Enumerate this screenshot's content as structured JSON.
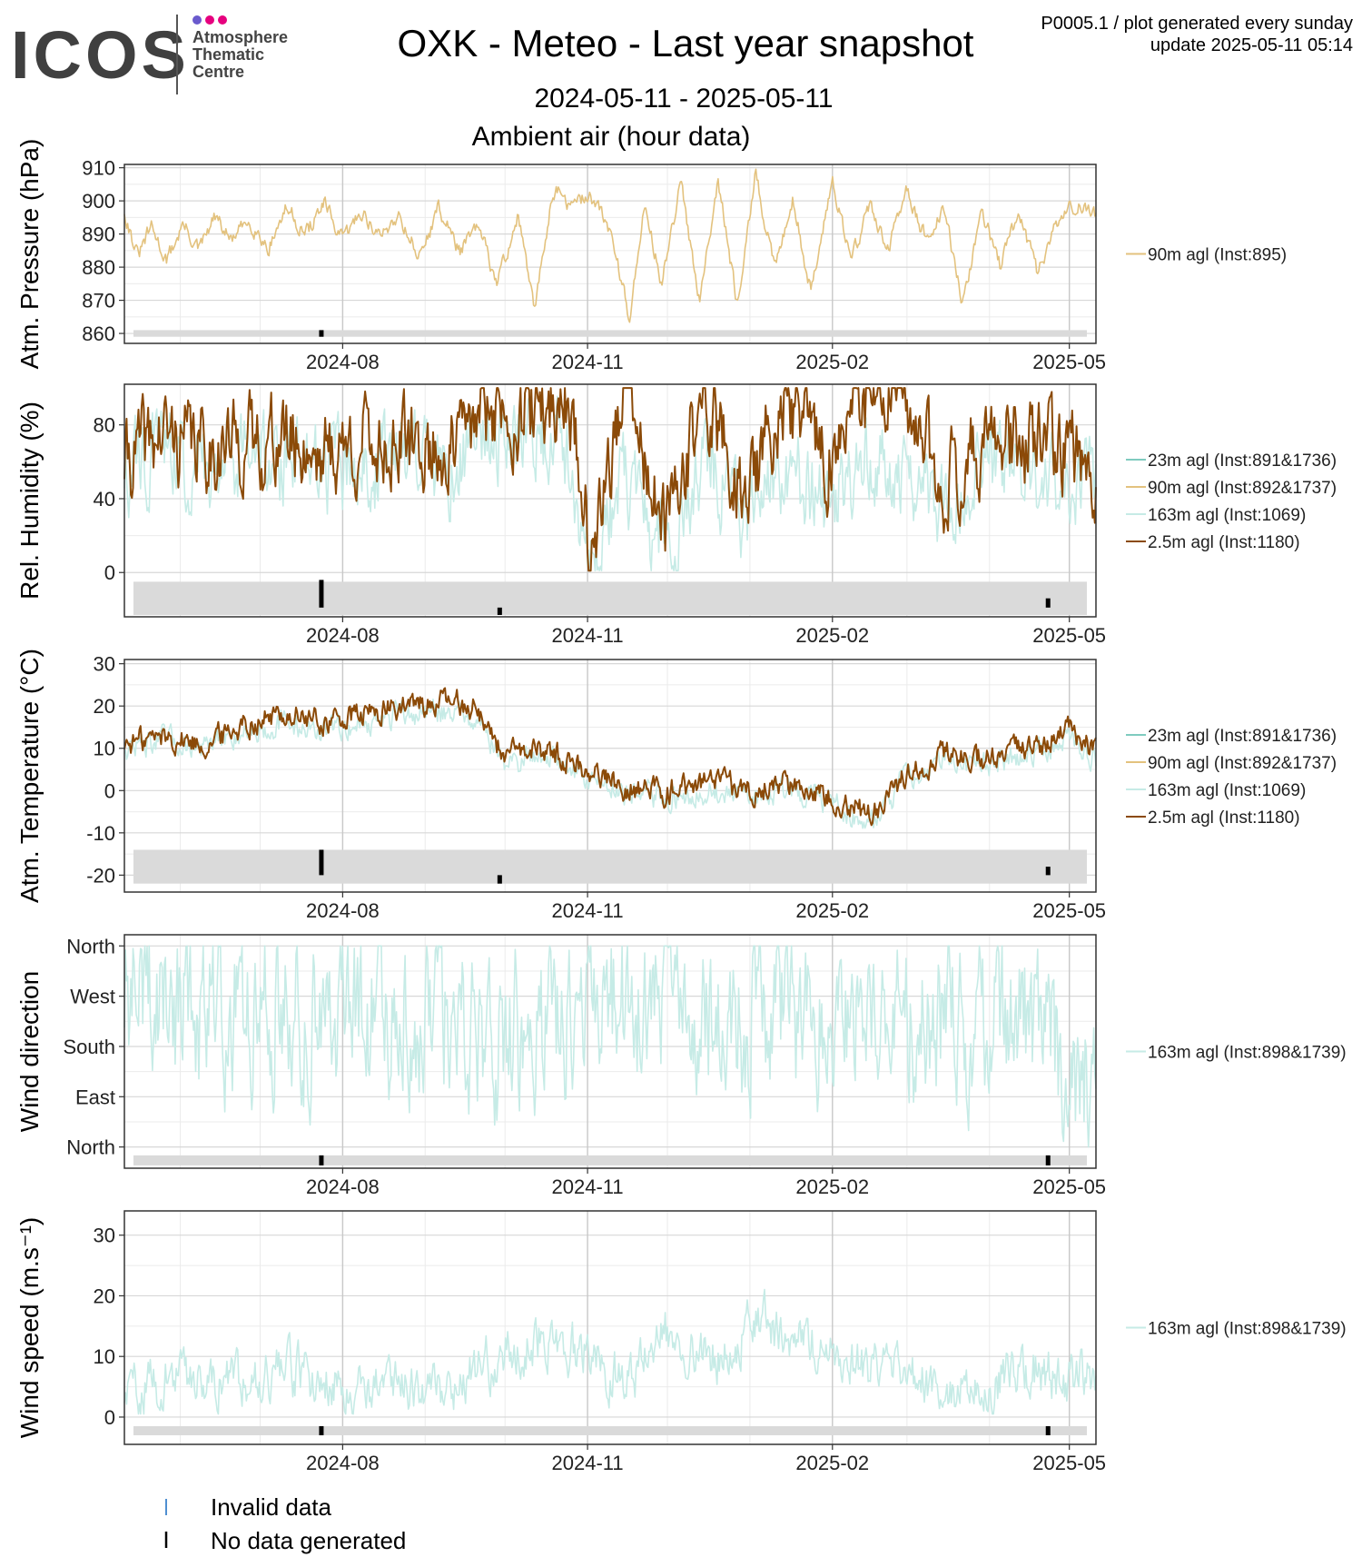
{
  "header": {
    "logo_text": "ICOS",
    "logo_sub": [
      "Atmosphere",
      "Thematic",
      "Centre"
    ],
    "logo_dot_colors": [
      "#6a5acd",
      "#e6007e",
      "#e6007e"
    ],
    "title": "OXK - Meteo - Last year snapshot",
    "date_range": "2024-05-11 - 2025-05-11",
    "subtitle": "Ambient air (hour data)",
    "corner_line1": "P0005.1 / plot generated every sunday",
    "corner_line2": "update  2025-05-11 05:14"
  },
  "legend_bottom": [
    {
      "label": "Invalid data",
      "color": "#4f8fd1"
    },
    {
      "label": "No data generated",
      "color": "#000000"
    }
  ],
  "chart_data": [
    {
      "type": "line",
      "id": "pressure",
      "ylabel": "Atm. Pressure (hPa)",
      "ylim": [
        857,
        911
      ],
      "yticks": [
        860,
        870,
        880,
        890,
        900,
        910
      ],
      "ytick_labels": [
        "860",
        "870",
        "880",
        "890",
        "900",
        "910"
      ],
      "xlim": [
        "2024-05-11",
        "2025-05-11"
      ],
      "xticks": [
        "2024-08-01",
        "2024-11-01",
        "2025-02-01",
        "2025-05-01"
      ],
      "xtick_labels": [
        "2024-08",
        "2024-11",
        "2025-02",
        "2025-05"
      ],
      "grid": true,
      "legend_position": "right",
      "gap_band": [
        859,
        861
      ],
      "no_data_marks": [
        {
          "x": "2024-07-24",
          "y0": 859,
          "y1": 861
        }
      ],
      "series": [
        {
          "name": "90m agl (Inst:895)",
          "color": "#e3c27e",
          "x": [
            "2024-05-11",
            "2024-05-16",
            "2024-05-21",
            "2024-05-27",
            "2024-06-02",
            "2024-06-08",
            "2024-06-14",
            "2024-06-20",
            "2024-06-27",
            "2024-07-04",
            "2024-07-11",
            "2024-07-18",
            "2024-07-25",
            "2024-08-01",
            "2024-08-08",
            "2024-08-15",
            "2024-08-22",
            "2024-08-30",
            "2024-09-06",
            "2024-09-14",
            "2024-09-21",
            "2024-09-28",
            "2024-10-06",
            "2024-10-12",
            "2024-10-19",
            "2024-10-26",
            "2024-11-02",
            "2024-11-10",
            "2024-11-17",
            "2024-11-22",
            "2024-11-29",
            "2024-12-06",
            "2024-12-13",
            "2024-12-20",
            "2024-12-27",
            "2025-01-03",
            "2025-01-10",
            "2025-01-17",
            "2025-01-24",
            "2025-02-01",
            "2025-02-08",
            "2025-02-15",
            "2025-02-22",
            "2025-03-01",
            "2025-03-08",
            "2025-03-15",
            "2025-03-22",
            "2025-03-29",
            "2025-04-05",
            "2025-04-12",
            "2025-04-19",
            "2025-04-26",
            "2025-05-03",
            "2025-05-11"
          ],
          "y": [
            897,
            883,
            892,
            882,
            893,
            885,
            895,
            888,
            894,
            886,
            898,
            890,
            899,
            888,
            897,
            889,
            896,
            883,
            898,
            885,
            892,
            875,
            896,
            866,
            904,
            898,
            902,
            890,
            864,
            899,
            875,
            905,
            871,
            907,
            869,
            908,
            880,
            901,
            872,
            907,
            882,
            899,
            885,
            903,
            889,
            897,
            869,
            898,
            880,
            897,
            878,
            893,
            899,
            895
          ]
        }
      ]
    },
    {
      "type": "line",
      "id": "humidity",
      "ylabel": "Rel. Humidity (%)",
      "ylim": [
        -24,
        102
      ],
      "yticks": [
        0,
        40,
        80
      ],
      "ytick_labels": [
        "0",
        "40",
        "80"
      ],
      "xlim": [
        "2024-05-11",
        "2025-05-11"
      ],
      "xticks": [
        "2024-08-01",
        "2024-11-01",
        "2025-02-01",
        "2025-05-01"
      ],
      "xtick_labels": [
        "2024-08",
        "2024-11",
        "2025-02",
        "2025-05"
      ],
      "grid": true,
      "legend_position": "right",
      "gap_band": [
        -23,
        -5
      ],
      "no_data_marks": [
        {
          "x": "2024-07-24",
          "y0": -19,
          "y1": -4
        },
        {
          "x": "2024-09-29",
          "y0": -23,
          "y1": -19
        },
        {
          "x": "2025-04-23",
          "y0": -19,
          "y1": -14
        }
      ],
      "series": [
        {
          "name": "23m agl (Inst:891&1736)",
          "color": "#7fcbbf",
          "x": [],
          "y": []
        },
        {
          "name": "90m agl (Inst:892&1737)",
          "color": "#e3c27e",
          "x": [],
          "y": []
        },
        {
          "name": "163m agl (Inst:1069)",
          "color": "#c6ebe6",
          "x": [
            "2024-05-11",
            "2024-05-25",
            "2024-06-10",
            "2024-06-25",
            "2024-07-10",
            "2024-07-25",
            "2024-08-10",
            "2024-08-25",
            "2024-09-10",
            "2024-09-25",
            "2024-10-10",
            "2024-10-25",
            "2024-11-02",
            "2024-11-15",
            "2024-11-30",
            "2024-12-15",
            "2024-12-30",
            "2025-01-15",
            "2025-01-30",
            "2025-02-15",
            "2025-03-01",
            "2025-03-15",
            "2025-03-30",
            "2025-04-15",
            "2025-04-30",
            "2025-05-11"
          ],
          "y": [
            55,
            65,
            58,
            62,
            60,
            55,
            58,
            60,
            57,
            75,
            70,
            65,
            5,
            50,
            10,
            60,
            30,
            55,
            40,
            60,
            55,
            35,
            55,
            55,
            50,
            45
          ]
        },
        {
          "name": "2.5m agl (Inst:1180)",
          "color": "#8b4a08",
          "x": [
            "2024-05-11",
            "2024-05-25",
            "2024-06-10",
            "2024-06-25",
            "2024-07-10",
            "2024-07-25",
            "2024-08-10",
            "2024-08-25",
            "2024-09-10",
            "2024-09-25",
            "2024-10-10",
            "2024-10-25",
            "2024-11-02",
            "2024-11-15",
            "2024-11-30",
            "2024-12-15",
            "2024-12-30",
            "2025-01-15",
            "2025-01-30",
            "2025-02-15",
            "2025-03-01",
            "2025-03-15",
            "2025-03-30",
            "2025-04-15",
            "2025-04-30",
            "2025-05-11"
          ],
          "y": [
            60,
            75,
            68,
            70,
            72,
            65,
            70,
            68,
            65,
            90,
            85,
            95,
            10,
            98,
            20,
            95,
            40,
            95,
            60,
            98,
            85,
            50,
            70,
            70,
            65,
            55
          ]
        }
      ]
    },
    {
      "type": "line",
      "id": "temperature",
      "ylabel": "Atm. Temperature (°C)",
      "ylim": [
        -24,
        31
      ],
      "yticks": [
        -20,
        -10,
        0,
        10,
        20,
        30
      ],
      "ytick_labels": [
        "-20",
        "-10",
        "0",
        "10",
        "20",
        "30"
      ],
      "xlim": [
        "2024-05-11",
        "2025-05-11"
      ],
      "xticks": [
        "2024-08-01",
        "2024-11-01",
        "2025-02-01",
        "2025-05-01"
      ],
      "xtick_labels": [
        "2024-08",
        "2024-11",
        "2025-02",
        "2025-05"
      ],
      "grid": true,
      "legend_position": "right",
      "gap_band": [
        -22,
        -14
      ],
      "no_data_marks": [
        {
          "x": "2024-07-24",
          "y0": -20,
          "y1": -14
        },
        {
          "x": "2024-09-29",
          "y0": -22,
          "y1": -20
        },
        {
          "x": "2025-04-23",
          "y0": -20,
          "y1": -18
        }
      ],
      "series": [
        {
          "name": "23m agl (Inst:891&1736)",
          "color": "#7fcbbf",
          "x": [],
          "y": []
        },
        {
          "name": "90m agl (Inst:892&1737)",
          "color": "#e3c27e",
          "x": [],
          "y": []
        },
        {
          "name": "163m agl (Inst:1069)",
          "color": "#c6ebe6",
          "x": [
            "2024-05-11",
            "2024-05-25",
            "2024-06-10",
            "2024-06-25",
            "2024-07-10",
            "2024-07-25",
            "2024-08-10",
            "2024-08-25",
            "2024-09-10",
            "2024-09-20",
            "2024-10-01",
            "2024-10-15",
            "2024-11-01",
            "2024-11-15",
            "2024-12-01",
            "2024-12-15",
            "2025-01-01",
            "2025-01-15",
            "2025-02-01",
            "2025-02-15",
            "2025-03-01",
            "2025-03-15",
            "2025-04-01",
            "2025-04-15",
            "2025-05-01",
            "2025-05-11"
          ],
          "y": [
            10,
            12,
            10,
            14,
            16,
            14,
            16,
            18,
            19,
            18,
            6,
            9,
            3,
            0,
            -2,
            0,
            -2,
            1,
            -3,
            -8,
            3,
            8,
            6,
            9,
            12,
            8
          ]
        },
        {
          "name": "2.5m agl (Inst:1180)",
          "color": "#8b4a08",
          "x": [
            "2024-05-11",
            "2024-05-25",
            "2024-06-10",
            "2024-06-25",
            "2024-07-10",
            "2024-07-25",
            "2024-08-10",
            "2024-08-25",
            "2024-09-10",
            "2024-09-20",
            "2024-10-01",
            "2024-10-15",
            "2024-11-01",
            "2024-11-15",
            "2024-12-01",
            "2024-12-15",
            "2025-01-01",
            "2025-01-15",
            "2025-02-01",
            "2025-02-15",
            "2025-03-01",
            "2025-03-15",
            "2025-04-01",
            "2025-04-15",
            "2025-05-01",
            "2025-05-11"
          ],
          "y": [
            11,
            13,
            11,
            16,
            18,
            16,
            18,
            20,
            21,
            20,
            8,
            10,
            5,
            1,
            0,
            2,
            0,
            2,
            -1,
            -6,
            4,
            9,
            7,
            10,
            14,
            9
          ]
        }
      ]
    },
    {
      "type": "line",
      "id": "wind_direction",
      "ylabel": "Wind direction",
      "ylim": [
        -38,
        380
      ],
      "yticks": [
        0,
        90,
        180,
        270,
        360
      ],
      "ytick_labels": [
        "North",
        "East",
        "South",
        "West",
        "North"
      ],
      "xlim": [
        "2024-05-11",
        "2025-05-11"
      ],
      "xticks": [
        "2024-08-01",
        "2024-11-01",
        "2025-02-01",
        "2025-05-01"
      ],
      "xtick_labels": [
        "2024-08",
        "2024-11",
        "2025-02",
        "2025-05"
      ],
      "grid": true,
      "legend_position": "right",
      "gap_band": [
        -33,
        -15
      ],
      "no_data_marks": [
        {
          "x": "2024-07-24",
          "y0": -33,
          "y1": -15
        },
        {
          "x": "2025-04-23",
          "y0": -33,
          "y1": -15
        }
      ],
      "series": [
        {
          "name": "163m agl (Inst:898&1739)",
          "color": "#c6ebe6",
          "x": [
            "2024-05-11",
            "2024-06-11",
            "2024-07-11",
            "2024-08-11",
            "2024-09-11",
            "2024-10-11",
            "2024-11-11",
            "2024-12-11",
            "2025-01-11",
            "2025-02-11",
            "2025-03-11",
            "2025-04-11",
            "2025-05-11"
          ],
          "y": [
            270,
            240,
            260,
            250,
            230,
            200,
            250,
            260,
            230,
            240,
            220,
            230,
            100
          ]
        }
      ]
    },
    {
      "type": "line",
      "id": "wind_speed",
      "ylabel": "Wind speed (m.s⁻¹)",
      "ylim": [
        -4.5,
        34
      ],
      "yticks": [
        0,
        10,
        20,
        30
      ],
      "ytick_labels": [
        "0",
        "10",
        "20",
        "30"
      ],
      "xlim": [
        "2024-05-11",
        "2025-05-11"
      ],
      "xticks": [
        "2024-08-01",
        "2024-11-01",
        "2025-02-01",
        "2025-05-01"
      ],
      "xtick_labels": [
        "2024-08",
        "2024-11",
        "2025-02",
        "2025-05"
      ],
      "grid": true,
      "legend_position": "right",
      "gap_band": [
        -3,
        -1.5
      ],
      "no_data_marks": [
        {
          "x": "2024-07-24",
          "y0": -3,
          "y1": -1.5
        },
        {
          "x": "2025-04-23",
          "y0": -3,
          "y1": -1.5
        }
      ],
      "series": [
        {
          "name": "163m agl (Inst:898&1739)",
          "color": "#c6ebe6",
          "x": [
            "2024-05-11",
            "2024-06-01",
            "2024-06-20",
            "2024-07-10",
            "2024-08-01",
            "2024-08-20",
            "2024-09-10",
            "2024-09-30",
            "2024-10-15",
            "2024-10-28",
            "2024-11-15",
            "2024-12-01",
            "2024-12-20",
            "2025-01-05",
            "2025-01-20",
            "2025-02-05",
            "2025-02-20",
            "2025-03-10",
            "2025-03-30",
            "2025-04-15",
            "2025-05-01",
            "2025-05-11"
          ],
          "y": [
            4,
            7,
            6,
            8,
            5,
            6,
            5,
            10,
            13,
            11,
            6,
            14,
            10,
            16,
            12,
            11,
            7,
            6,
            5,
            8,
            6,
            7
          ]
        }
      ]
    }
  ]
}
